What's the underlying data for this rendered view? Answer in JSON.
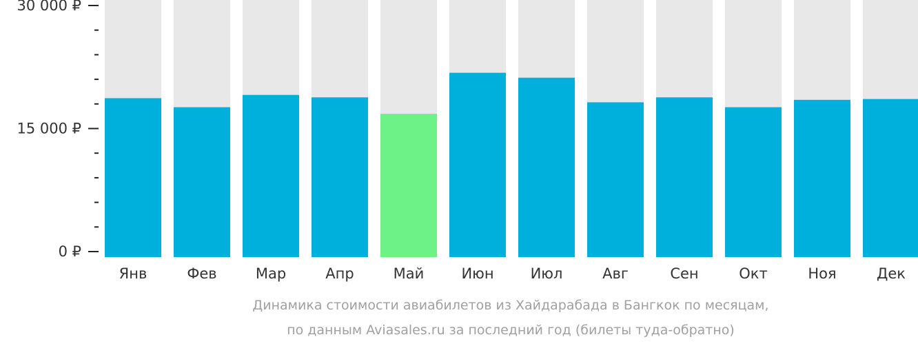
{
  "chart_data": {
    "type": "bar",
    "categories": [
      "Янв",
      "Фев",
      "Мар",
      "Апр",
      "Май",
      "Июн",
      "Июл",
      "Авг",
      "Сен",
      "Окт",
      "Ноя",
      "Дек"
    ],
    "values": [
      18700,
      17600,
      19100,
      18800,
      16800,
      21800,
      21200,
      18200,
      18800,
      17600,
      18500,
      18600
    ],
    "highlight_index": 4,
    "yticks": [
      {
        "value": 0,
        "label": "0 ₽"
      },
      {
        "value": 15000,
        "label": "15 000 ₽"
      },
      {
        "value": 30000,
        "label": "30 000 ₽"
      }
    ],
    "minor_step": 3000,
    "ylim": [
      0,
      30000
    ],
    "colors": {
      "bar": "#00b0dc",
      "highlight": "#6cf287",
      "track": "#e8e8e8",
      "text": "#333333"
    },
    "caption": [
      "Динамика стоимости авиабилетов из Хайдарабада в Бангкок по месяцам,",
      "по данным Aviasales.ru за последний год (билеты туда-обратно)"
    ]
  }
}
